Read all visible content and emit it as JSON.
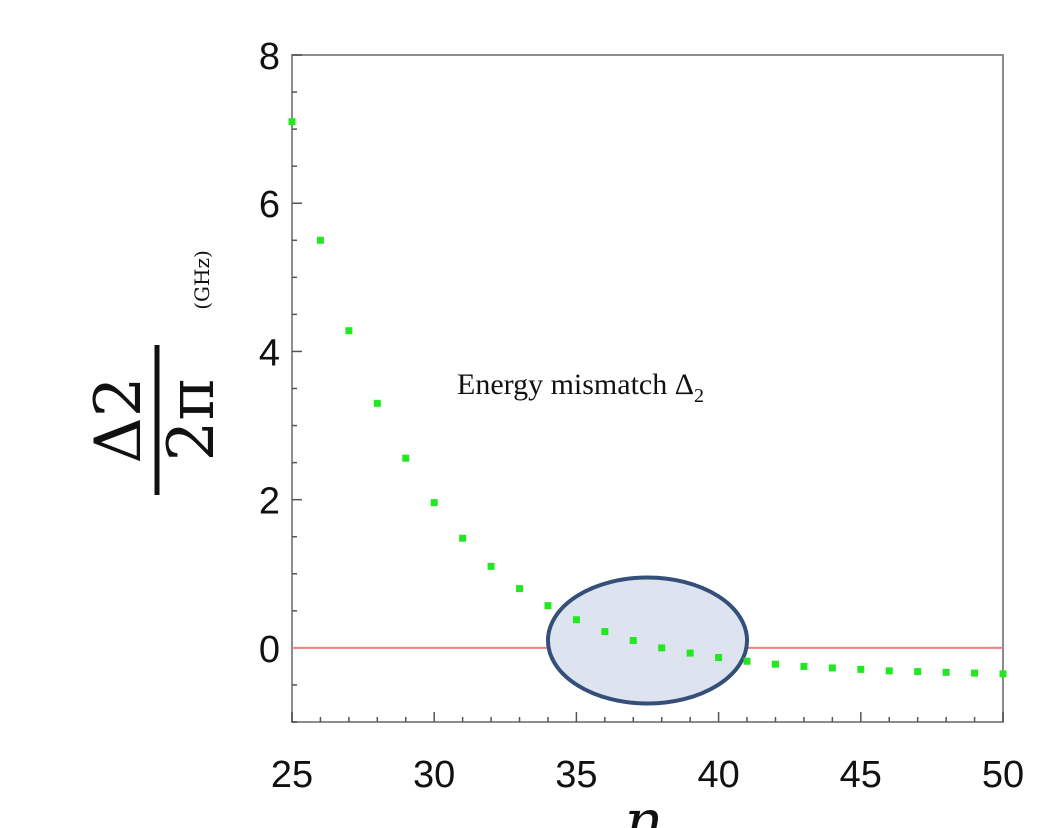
{
  "chart_data": {
    "type": "scatter",
    "title": "",
    "xlabel": "n",
    "ylabel": {
      "numerator": "Δ2",
      "denominator": "2π",
      "unit": "(GHz)"
    },
    "xlim": [
      25,
      50
    ],
    "ylim": [
      -1,
      8
    ],
    "xticks": [
      "25",
      "30",
      "35",
      "40",
      "45",
      "50"
    ],
    "yticks": [
      "0",
      "2",
      "4",
      "6",
      "8"
    ],
    "grid": false,
    "legend": "none",
    "annotation": {
      "text": "Energy mismatch Δ",
      "subscript": "2"
    },
    "reference_line": {
      "y": 0,
      "color": "#f08080"
    },
    "highlight_ellipse": {
      "x_center": 37.5,
      "y_center": 0.1,
      "x_radius": 3.5,
      "y_radius": 0.85,
      "fill": "#dde3ef",
      "stroke": "#34507a"
    },
    "series": [
      {
        "color": "#22e822",
        "x": [
          25,
          26,
          27,
          28,
          29,
          30,
          31,
          32,
          33,
          34,
          35,
          36,
          37,
          38,
          39,
          40,
          41,
          42,
          43,
          44,
          45,
          46,
          47,
          48,
          49,
          50
        ],
        "y": [
          7.1,
          5.5,
          4.28,
          3.3,
          2.56,
          1.96,
          1.48,
          1.1,
          0.8,
          0.57,
          0.38,
          0.22,
          0.1,
          0.0,
          -0.07,
          -0.13,
          -0.18,
          -0.22,
          -0.25,
          -0.27,
          -0.29,
          -0.31,
          -0.32,
          -0.33,
          -0.34,
          -0.35
        ]
      }
    ]
  }
}
